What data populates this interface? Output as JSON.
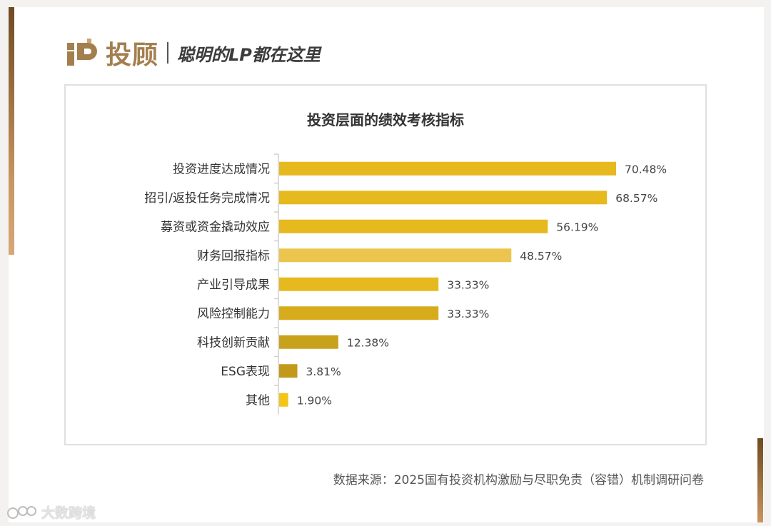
{
  "header": {
    "logo_text": "投顾",
    "slogan": "聪明的LP都在这里"
  },
  "colors": {
    "bar_default": "#e6b91e",
    "bar_light": "#ecc54f",
    "bar_dark": "#c9a21c",
    "bar_other": "#f2c518",
    "label_text": "#333333",
    "brand": "#a37f4e"
  },
  "chart_data": {
    "type": "bar",
    "orientation": "horizontal",
    "title": "投资层面的绩效考核指标",
    "categories": [
      "投资进度达成情况",
      "招引/返投任务完成情况",
      "募资或资金撬动效应",
      "财务回报指标",
      "产业引导成果",
      "风险控制能力",
      "科技创新贡献",
      "ESG表现",
      "其他"
    ],
    "values": [
      70.48,
      68.57,
      56.19,
      48.57,
      33.33,
      33.33,
      12.38,
      3.81,
      1.9
    ],
    "value_labels": [
      "70.48%",
      "68.57%",
      "56.19%",
      "48.57%",
      "33.33%",
      "33.33%",
      "12.38%",
      "3.81%",
      "1.90%"
    ],
    "bar_colors": [
      "#e6b91e",
      "#e6b91e",
      "#e6b91e",
      "#ecc54f",
      "#e6b91e",
      "#d7ac1c",
      "#c9a21c",
      "#c2991a",
      "#f2c518"
    ],
    "xlim": [
      0,
      100
    ],
    "grid": false,
    "legend": "none"
  },
  "footer": {
    "source": "数据来源：2025国有投资机构激励与尽职免责（容错）机制调研问卷",
    "watermark": "大数跨境"
  }
}
